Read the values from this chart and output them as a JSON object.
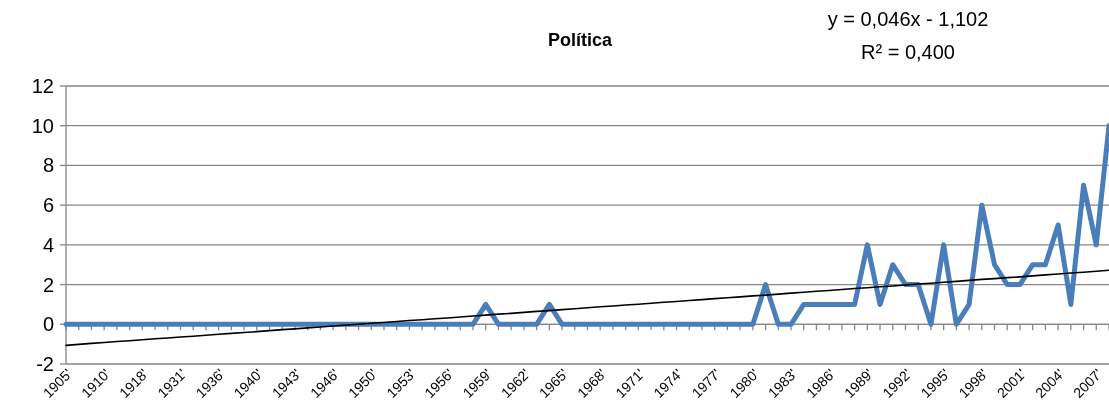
{
  "chart_data": {
    "type": "line",
    "title": "Política",
    "categories": [
      "1905'",
      null,
      null,
      "1910'",
      null,
      null,
      "1918'",
      null,
      null,
      "1931'",
      null,
      null,
      "1936'",
      null,
      null,
      "1940'",
      null,
      null,
      "1943'",
      null,
      null,
      "1946'",
      null,
      null,
      "1950'",
      null,
      null,
      "1953'",
      null,
      null,
      "1956'",
      null,
      null,
      "1959'",
      null,
      null,
      "1962'",
      null,
      null,
      "1965'",
      null,
      null,
      "1968'",
      null,
      null,
      "1971'",
      null,
      null,
      "1974'",
      null,
      null,
      "1977'",
      null,
      null,
      "1980'",
      null,
      null,
      "1983'",
      null,
      null,
      "1986'",
      null,
      null,
      "1989'",
      null,
      null,
      "1992'",
      null,
      null,
      "1995'",
      null,
      null,
      "1998'",
      null,
      null,
      "2001'",
      null,
      null,
      "2004'",
      null,
      null,
      "2007'",
      null
    ],
    "series": [
      {
        "color": "#4a7ebb",
        "values": [
          0,
          0,
          0,
          0,
          0,
          0,
          0,
          0,
          0,
          0,
          0,
          0,
          0,
          0,
          0,
          0,
          0,
          0,
          0,
          0,
          0,
          0,
          0,
          0,
          0,
          0,
          0,
          0,
          0,
          0,
          0,
          0,
          0,
          1,
          0,
          0,
          0,
          0,
          1,
          0,
          0,
          0,
          0,
          0,
          0,
          0,
          0,
          0,
          0,
          0,
          0,
          0,
          0,
          0,
          0,
          2,
          0,
          0,
          1,
          1,
          1,
          1,
          1,
          4,
          1,
          3,
          2,
          2,
          0,
          4,
          0,
          1,
          6,
          3,
          2,
          2,
          3,
          3,
          5,
          1,
          7,
          4,
          10
        ]
      },
      {
        "type": "line",
        "color": "#000000",
        "values": [
          -1.06,
          -1.01,
          -0.96,
          -0.92,
          -0.87,
          -0.83,
          -0.78,
          -0.73,
          -0.69,
          -0.64,
          -0.6,
          -0.55,
          -0.5,
          -0.46,
          -0.41,
          -0.37,
          -0.32,
          -0.27,
          -0.23,
          -0.18,
          -0.14,
          -0.09,
          -0.04,
          0,
          0.05,
          0.09,
          0.14,
          0.19,
          0.23,
          0.28,
          0.32,
          0.37,
          0.42,
          0.46,
          0.51,
          0.55,
          0.6,
          0.65,
          0.69,
          0.74,
          0.78,
          0.83,
          0.88,
          0.92,
          0.97,
          1.01,
          1.06,
          1.11,
          1.15,
          1.2,
          1.24,
          1.29,
          1.34,
          1.38,
          1.43,
          1.47,
          1.52,
          1.57,
          1.61,
          1.66,
          1.7,
          1.75,
          1.8,
          1.84,
          1.89,
          1.93,
          1.98,
          2.03,
          2.07,
          2.12,
          2.16,
          2.21,
          2.26,
          2.3,
          2.35,
          2.39,
          2.44,
          2.49,
          2.53,
          2.58,
          2.62,
          2.67,
          2.72
        ]
      }
    ],
    "ylim": [
      -2,
      12
    ],
    "yticks": [
      -2,
      0,
      2,
      4,
      6,
      8,
      10,
      12
    ],
    "grid": "y",
    "annotations": [
      "y = 0,046x - 1,102",
      "R² = 0,400"
    ]
  }
}
